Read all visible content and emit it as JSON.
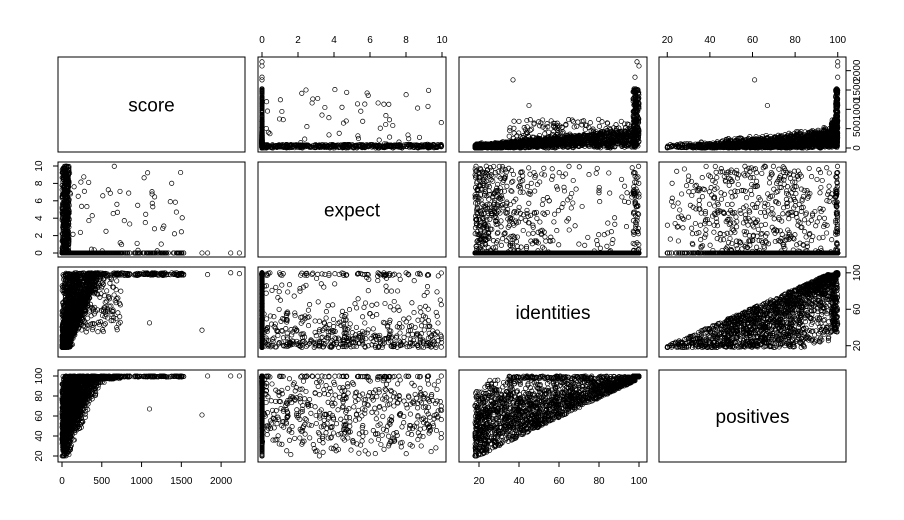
{
  "chart_data": {
    "type": "scatter",
    "subtype": "scatterplot-matrix",
    "variables": [
      "score",
      "expect",
      "identities",
      "positives"
    ],
    "ranges": {
      "score": [
        0,
        2250
      ],
      "expect": [
        0,
        10
      ],
      "identities": [
        12,
        102
      ],
      "positives": [
        18,
        102
      ]
    },
    "ticks": {
      "score": [
        0,
        500,
        1000,
        1500,
        2000
      ],
      "score_right": [
        0,
        500,
        1000,
        1500,
        2000
      ],
      "expect": [
        0,
        2,
        4,
        6,
        8,
        10
      ],
      "identities": [
        20,
        40,
        60,
        80,
        100
      ],
      "identities_top": [
        20,
        40,
        60,
        80,
        100
      ],
      "positives": [
        20,
        40,
        60,
        80,
        100
      ],
      "identities_right": [
        20,
        60,
        100
      ]
    },
    "tick_labels": {
      "score": [
        "0",
        "500",
        "1000",
        "1500",
        "2000"
      ],
      "expect": [
        "0",
        "2",
        "4",
        "6",
        "8",
        "10"
      ],
      "identities": [
        "20",
        "40",
        "60",
        "80",
        "100"
      ],
      "positives": [
        "20",
        "40",
        "60",
        "80",
        "100"
      ],
      "identities_right": [
        "20",
        "60",
        "100"
      ]
    },
    "tick_placement": {
      "top": {
        "1": "expect",
        "3": "positives"
      },
      "bottom": {
        "0": "score",
        "2": "identities"
      },
      "left": {
        "1": "expect",
        "3": "positives"
      },
      "right": {
        "0": "score",
        "2": "identities"
      }
    },
    "grid": false,
    "legend": "none",
    "marker": "open-circle",
    "color": "#000000"
  }
}
